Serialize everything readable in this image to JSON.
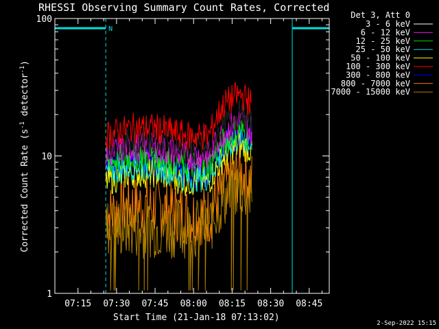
{
  "chart_data": {
    "type": "line",
    "title": "RHESSI Observing Summary Count Rates, Corrected",
    "xlabel": "Start Time (21-Jan-18 07:13:02)",
    "ylabel_main": "Corrected Count Rate (s",
    "ylabel_sup1": "-1",
    "ylabel_mid": " detector",
    "ylabel_sup2": "-1",
    "ylabel_end": ")",
    "yscale": "log",
    "ylim": [
      1,
      100
    ],
    "xlim_minutes": [
      7.1,
      8.88
    ],
    "x_ticks": [
      "07:15",
      "07:30",
      "07:45",
      "08:00",
      "08:15",
      "08:30",
      "08:45"
    ],
    "y_ticks": [
      "1",
      "10",
      "100"
    ],
    "legend_title": "Det 3, Att 0",
    "legend_placement": "right",
    "series": [
      {
        "name": "3 - 6 keV",
        "color": "#000000",
        "x": [
          7.43,
          7.6,
          7.75,
          7.95,
          8.1,
          8.2,
          8.3,
          8.38
        ],
        "values": [
          12,
          13,
          13,
          11,
          11,
          17,
          20,
          17
        ]
      },
      {
        "name": "6 - 12 keV",
        "color": "#ff00ff",
        "x": [
          7.43,
          7.6,
          7.75,
          7.95,
          8.1,
          8.2,
          8.3,
          8.38
        ],
        "values": [
          10.5,
          11.5,
          11.5,
          10,
          10,
          15,
          18,
          15
        ]
      },
      {
        "name": "12 - 25 keV",
        "color": "#00e000",
        "x": [
          7.43,
          7.6,
          7.75,
          7.95,
          8.1,
          8.2,
          8.3,
          8.38
        ],
        "values": [
          9,
          10,
          10,
          8.5,
          8.5,
          13,
          16,
          13
        ]
      },
      {
        "name": "25 - 50 keV",
        "color": "#00e0e0",
        "x": [
          7.43,
          7.6,
          7.75,
          7.95,
          8.1,
          8.2,
          8.3,
          8.38
        ],
        "values": [
          7.5,
          8.5,
          8.5,
          7,
          7,
          11,
          14,
          12
        ]
      },
      {
        "name": "50 - 100 keV",
        "color": "#ffff00",
        "x": [
          7.43,
          7.6,
          7.75,
          7.95,
          8.1,
          8.2,
          8.3,
          8.38
        ],
        "values": [
          6.5,
          7.5,
          7.5,
          6.5,
          6.5,
          10,
          12,
          11
        ]
      },
      {
        "name": "100 - 300 keV",
        "color": "#ff0000",
        "x": [
          7.43,
          7.6,
          7.75,
          7.95,
          8.1,
          8.2,
          8.3,
          8.38
        ],
        "values": [
          14,
          16,
          16,
          14,
          14,
          24,
          28,
          24
        ]
      },
      {
        "name": "300 - 800 keV",
        "color": "#0000ff",
        "x": [
          7.43,
          7.6,
          7.75,
          7.95,
          8.1,
          8.2,
          8.3,
          8.38
        ],
        "values": [
          8,
          9,
          9,
          7.5,
          7.5,
          12,
          14,
          13
        ]
      },
      {
        "name": "800 - 7000 keV",
        "color": "#ff8000",
        "x": [
          7.43,
          7.6,
          7.75,
          7.95,
          8.1,
          8.2,
          8.3,
          8.38
        ],
        "values": [
          3.7,
          4.3,
          4.3,
          3.7,
          3.7,
          6,
          7.5,
          6.5
        ]
      },
      {
        "name": "7000 - 15000 keV",
        "color": "#b08000",
        "x": [
          7.43,
          7.6,
          7.75,
          7.95,
          8.1,
          8.2,
          8.3,
          8.38
        ],
        "values": [
          3,
          3,
          3,
          3,
          3,
          5,
          6,
          5
        ]
      }
    ],
    "annotations": {
      "night_marker_label": "N",
      "night_marker_x": [
        7.1,
        7.43
      ],
      "night_marker_x_end": [
        8.64,
        8.88
      ],
      "solid_lines_x": [
        7.1,
        8.64
      ],
      "dashed_lines_x": [
        7.43,
        8.88
      ],
      "marker_bar_y": 85,
      "marker_color": "#00e0e0"
    }
  },
  "footer_timestamp": "2-Sep-2022 15:15"
}
